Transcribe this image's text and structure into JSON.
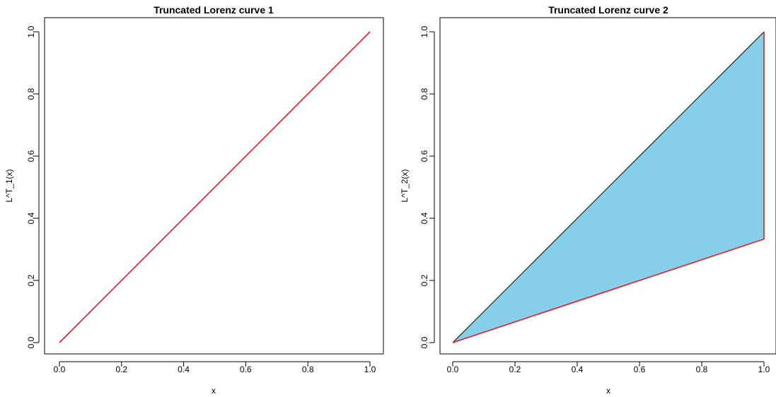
{
  "chart_data": [
    {
      "type": "line",
      "title": "Truncated Lorenz curve 1",
      "xlabel": "x",
      "ylabel": "L^T_1(x)",
      "xlim": [
        0,
        1
      ],
      "ylim": [
        0,
        1
      ],
      "xticks": [
        "0.0",
        "0.2",
        "0.4",
        "0.6",
        "0.8",
        "1.0"
      ],
      "yticks": [
        "0.0",
        "0.2",
        "0.4",
        "0.6",
        "0.8",
        "1.0"
      ],
      "grid": false,
      "series": [
        {
          "x": [
            0,
            1
          ],
          "y": [
            0,
            1
          ],
          "color": "#e41a1c"
        }
      ]
    },
    {
      "type": "line",
      "title": "Truncated Lorenz curve 2",
      "xlabel": "x",
      "ylabel": "L^T_2(x)",
      "xlim": [
        0,
        1
      ],
      "ylim": [
        0,
        1
      ],
      "xticks": [
        "0.0",
        "0.2",
        "0.4",
        "0.6",
        "0.8",
        "1.0"
      ],
      "yticks": [
        "0.0",
        "0.2",
        "0.4",
        "0.6",
        "0.8",
        "1.0"
      ],
      "grid": false,
      "filled_region": {
        "x": [
          0,
          1,
          1
        ],
        "y": [
          0,
          1,
          0.333
        ],
        "color": "#87ceeb"
      },
      "series": [
        {
          "x": [
            0,
            1
          ],
          "y": [
            0,
            1
          ],
          "color": "#000000"
        },
        {
          "x": [
            0,
            1,
            1
          ],
          "y": [
            0,
            0.333,
            1
          ],
          "color": "#e41a1c"
        }
      ]
    }
  ]
}
